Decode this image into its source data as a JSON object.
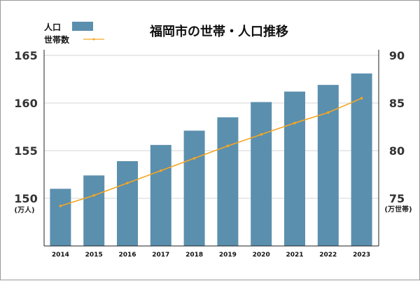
{
  "chart_data": {
    "type": "bar",
    "title": "福岡市の世帯・人口推移",
    "categories": [
      "2014",
      "2015",
      "2016",
      "2017",
      "2018",
      "2019",
      "2020",
      "2021",
      "2022",
      "2023"
    ],
    "series": [
      {
        "name": "人口",
        "type": "bar",
        "axis": "left",
        "color": "#5b8fae",
        "values": [
          151.0,
          152.4,
          153.9,
          155.6,
          157.1,
          158.5,
          160.1,
          161.2,
          161.9,
          163.1
        ]
      },
      {
        "name": "世帯数",
        "type": "line",
        "axis": "right",
        "color": "#f5a623",
        "values": [
          74.2,
          75.3,
          76.6,
          77.9,
          79.2,
          80.5,
          81.7,
          82.9,
          84.0,
          85.5
        ]
      }
    ],
    "y_left": {
      "ylim": [
        145,
        165
      ],
      "ticks": [
        150,
        155,
        160,
        165
      ],
      "unit": "(万人)"
    },
    "y_right": {
      "ylim": [
        70,
        90
      ],
      "ticks": [
        75,
        80,
        85,
        90
      ],
      "unit": "(万世帯)"
    },
    "legend": "top-left",
    "grid": true
  }
}
